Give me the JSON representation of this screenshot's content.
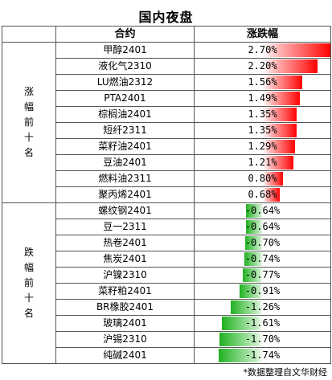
{
  "title": "国内夜盘",
  "header": {
    "contract": "合约",
    "change": "涨跌幅"
  },
  "groups": [
    {
      "label": "涨幅前十名",
      "direction": "up",
      "rows": [
        {
          "name": "甲醇2401",
          "change": "2.70%",
          "value": 2.7
        },
        {
          "name": "液化气2310",
          "change": "2.20%",
          "value": 2.2
        },
        {
          "name": "LU燃油2312",
          "change": "1.56%",
          "value": 1.56
        },
        {
          "name": "PTA2401",
          "change": "1.49%",
          "value": 1.49
        },
        {
          "name": "棕榈油2401",
          "change": "1.35%",
          "value": 1.35
        },
        {
          "name": "短纤2311",
          "change": "1.35%",
          "value": 1.35
        },
        {
          "name": "菜籽油2401",
          "change": "1.29%",
          "value": 1.29
        },
        {
          "name": "豆油2401",
          "change": "1.21%",
          "value": 1.21
        },
        {
          "name": "燃料油2311",
          "change": "0.80%",
          "value": 0.8
        },
        {
          "name": "聚丙烯2401",
          "change": "0.68%",
          "value": 0.68
        }
      ]
    },
    {
      "label": "跌幅前十名",
      "direction": "down",
      "rows": [
        {
          "name": "螺纹钢2401",
          "change": "-0.64%",
          "value": -0.64
        },
        {
          "name": "豆一2311",
          "change": "-0.64%",
          "value": -0.64
        },
        {
          "name": "热卷2401",
          "change": "-0.70%",
          "value": -0.7
        },
        {
          "name": "焦炭2401",
          "change": "-0.74%",
          "value": -0.74
        },
        {
          "name": "沪镍2310",
          "change": "-0.77%",
          "value": -0.77
        },
        {
          "name": "菜籽粕2401",
          "change": "-0.91%",
          "value": -0.91
        },
        {
          "name": "BR橡胶2401",
          "change": "-1.26%",
          "value": -1.26
        },
        {
          "name": "玻璃2401",
          "change": "-1.61%",
          "value": -1.61
        },
        {
          "name": "沪锡2310",
          "change": "-1.70%",
          "value": -1.7
        },
        {
          "name": "纯碱2401",
          "change": "-1.74%",
          "value": -1.74
        }
      ]
    }
  ],
  "footer": "*数据整理自文华财经",
  "colors": {
    "up": "#ff0000",
    "down": "#22b022",
    "border": "#555555"
  }
}
